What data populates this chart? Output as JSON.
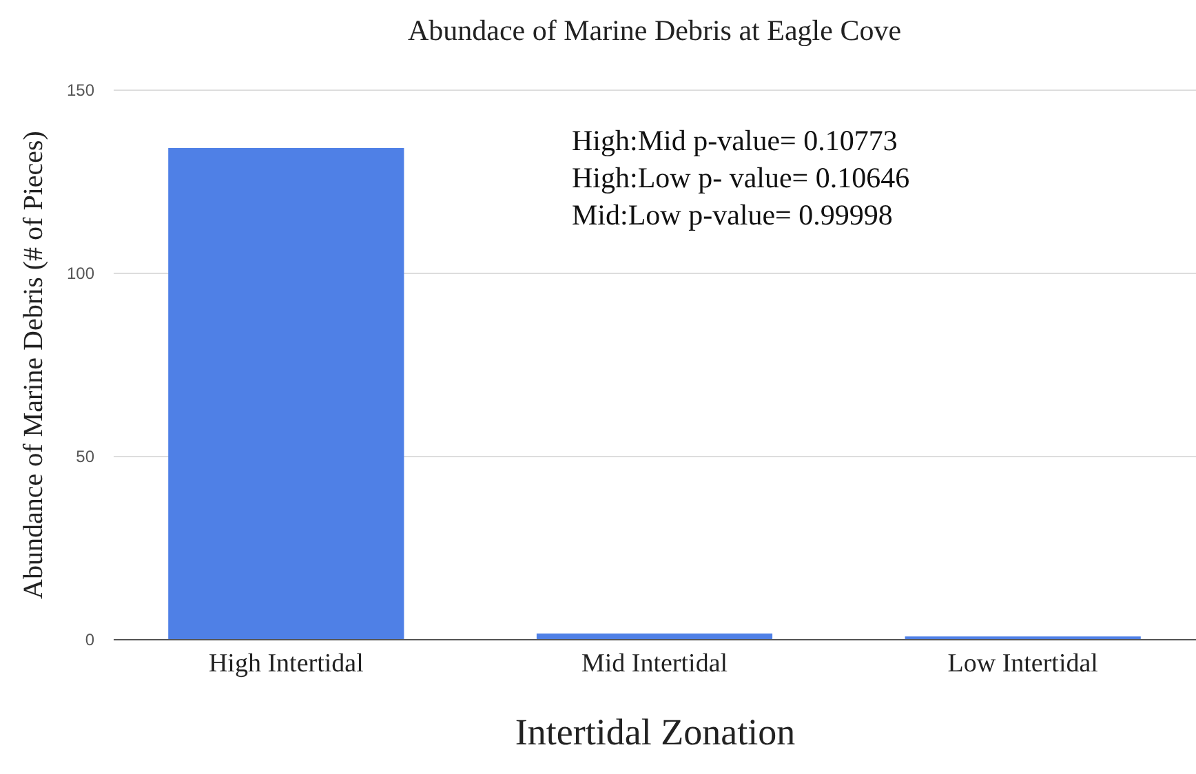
{
  "chart_data": {
    "type": "bar",
    "title": "Abundace of Marine Debris at Eagle Cove",
    "xlabel": "Intertidal Zonation",
    "ylabel": "Abundance of Marine Debris (# of Pieces)",
    "categories": [
      "High Intertidal",
      "Mid Intertidal",
      "Low Intertidal"
    ],
    "values": [
      134,
      1.5,
      0.7
    ],
    "color": "#4f80e6",
    "ylim": [
      0,
      150
    ],
    "yticks": [
      0,
      50,
      100,
      150
    ],
    "grid": "y",
    "annotations": [
      "High:Mid p-value= 0.10773",
      "High:Low p- value= 0.10646",
      "Mid:Low p-value= 0.99998"
    ]
  }
}
